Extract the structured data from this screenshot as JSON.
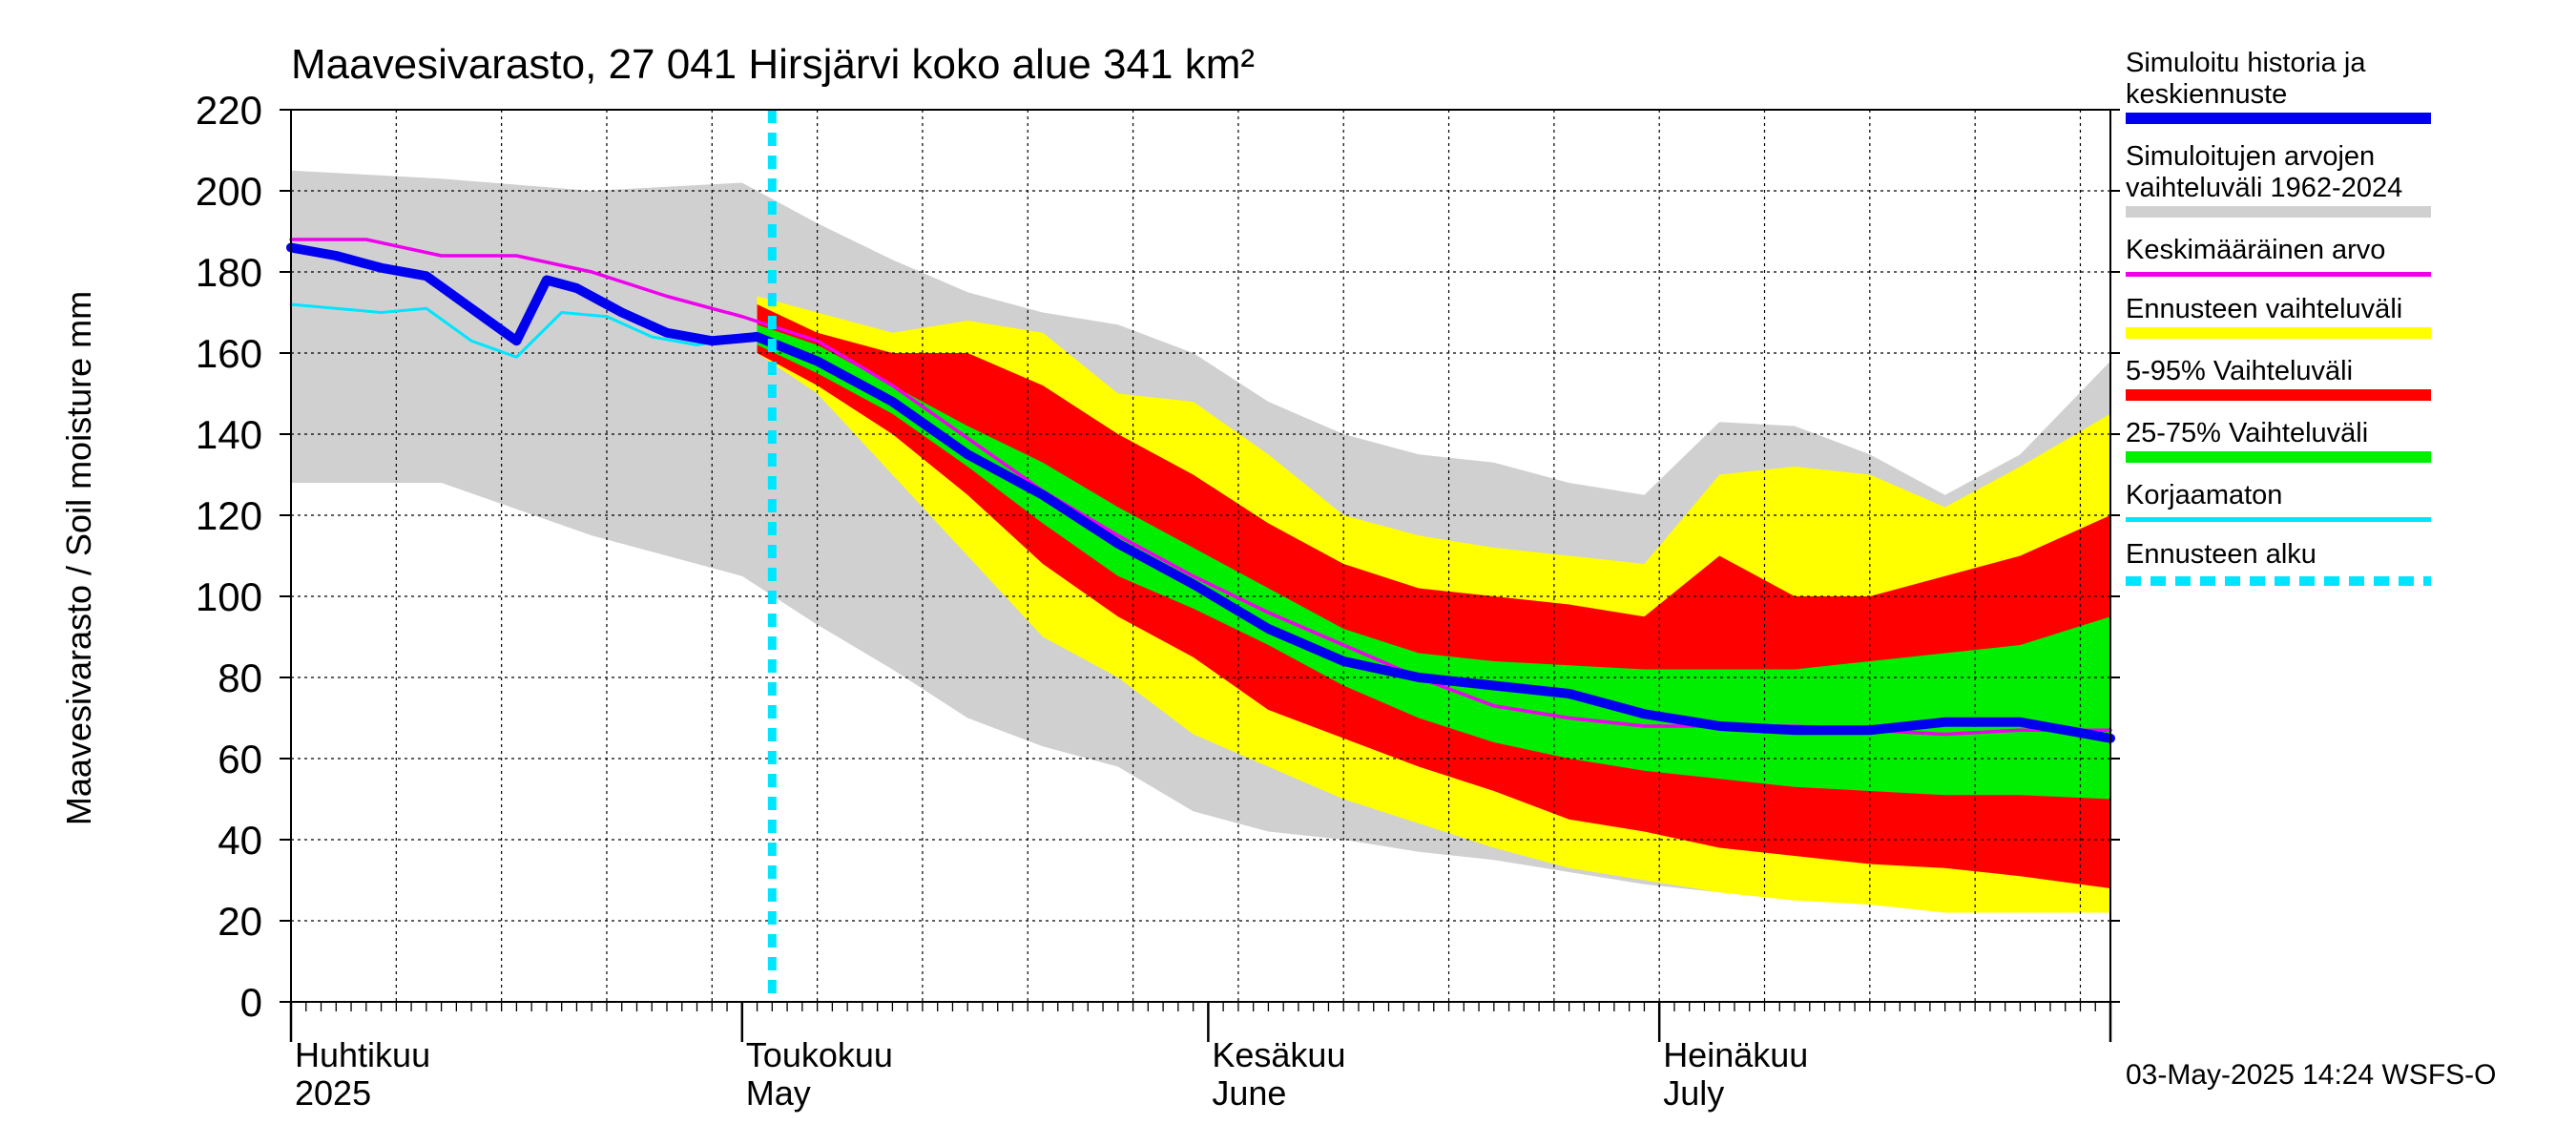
{
  "chart_data": {
    "type": "area",
    "title": "Maavesivarasto, 27 041 Hirsjärvi koko alue 341 km²",
    "ylabel": "Maavesivarasto / Soil moisture   mm",
    "xlabel": "",
    "ylim": [
      0,
      220
    ],
    "yticks": [
      0,
      20,
      40,
      60,
      80,
      100,
      120,
      140,
      160,
      180,
      200,
      220
    ],
    "xlim": [
      "2025-04-01",
      "2025-07-31"
    ],
    "forecast_start": "2025-05-03",
    "month_labels": [
      {
        "line1": "Huhtikuu",
        "line2": "2025",
        "date": "2025-04-01"
      },
      {
        "line1": "Toukokuu",
        "line2": "May",
        "date": "2025-05-01"
      },
      {
        "line1": "Kesäkuu",
        "line2": "June",
        "date": "2025-06-01"
      },
      {
        "line1": "Heinäkuu",
        "line2": "July",
        "date": "2025-07-01"
      }
    ],
    "bands": [
      {
        "name": "Simuloitujen arvojen vaihteluväli 1962-2024",
        "color": "#d0d0d0",
        "x": [
          "2025-04-01",
          "2025-04-11",
          "2025-04-21",
          "2025-05-01",
          "2025-05-06",
          "2025-05-11",
          "2025-05-16",
          "2025-05-21",
          "2025-05-26",
          "2025-05-31",
          "2025-06-05",
          "2025-06-10",
          "2025-06-15",
          "2025-06-20",
          "2025-06-25",
          "2025-06-30",
          "2025-07-05",
          "2025-07-10",
          "2025-07-15",
          "2025-07-20",
          "2025-07-25",
          "2025-07-31"
        ],
        "upper": [
          205,
          203,
          200,
          202,
          192,
          183,
          175,
          170,
          167,
          160,
          148,
          140,
          135,
          133,
          128,
          125,
          143,
          142,
          135,
          125,
          135,
          158
        ],
        "lower": [
          128,
          128,
          115,
          105,
          93,
          82,
          70,
          63,
          58,
          47,
          42,
          40,
          37,
          35,
          32,
          29,
          27,
          27,
          26,
          25,
          25,
          22
        ]
      },
      {
        "name": "Ennusteen vaihteluväli",
        "color": "#ffff00",
        "x": [
          "2025-05-02",
          "2025-05-06",
          "2025-05-11",
          "2025-05-16",
          "2025-05-21",
          "2025-05-26",
          "2025-05-31",
          "2025-06-05",
          "2025-06-10",
          "2025-06-15",
          "2025-06-20",
          "2025-06-25",
          "2025-06-30",
          "2025-07-05",
          "2025-07-10",
          "2025-07-15",
          "2025-07-20",
          "2025-07-25",
          "2025-07-31"
        ],
        "upper": [
          174,
          170,
          165,
          168,
          165,
          150,
          148,
          135,
          120,
          115,
          112,
          110,
          108,
          130,
          132,
          130,
          122,
          132,
          145
        ],
        "lower": [
          160,
          150,
          130,
          110,
          90,
          80,
          66,
          58,
          50,
          44,
          38,
          33,
          30,
          27,
          25,
          24,
          22,
          22,
          22
        ]
      },
      {
        "name": "5-95% Vaihteluväli",
        "color": "#ff0000",
        "x": [
          "2025-05-02",
          "2025-05-06",
          "2025-05-11",
          "2025-05-16",
          "2025-05-21",
          "2025-05-26",
          "2025-05-31",
          "2025-06-05",
          "2025-06-10",
          "2025-06-15",
          "2025-06-20",
          "2025-06-25",
          "2025-06-30",
          "2025-07-05",
          "2025-07-10",
          "2025-07-15",
          "2025-07-20",
          "2025-07-25",
          "2025-07-31"
        ],
        "upper": [
          172,
          165,
          160,
          160,
          152,
          140,
          130,
          118,
          108,
          102,
          100,
          98,
          95,
          110,
          100,
          100,
          105,
          110,
          120
        ],
        "lower": [
          160,
          152,
          140,
          125,
          108,
          95,
          85,
          72,
          65,
          58,
          52,
          45,
          42,
          38,
          36,
          34,
          33,
          31,
          28
        ]
      },
      {
        "name": "25-75% Vaihteluväli",
        "color": "#00ee00",
        "x": [
          "2025-05-02",
          "2025-05-06",
          "2025-05-11",
          "2025-05-16",
          "2025-05-21",
          "2025-05-26",
          "2025-05-31",
          "2025-06-05",
          "2025-06-10",
          "2025-06-15",
          "2025-06-20",
          "2025-06-25",
          "2025-06-30",
          "2025-07-05",
          "2025-07-10",
          "2025-07-15",
          "2025-07-20",
          "2025-07-25",
          "2025-07-31"
        ],
        "upper": [
          167,
          162,
          152,
          142,
          133,
          122,
          112,
          102,
          92,
          86,
          84,
          83,
          82,
          82,
          82,
          84,
          86,
          88,
          95
        ],
        "lower": [
          162,
          155,
          145,
          132,
          118,
          105,
          97,
          88,
          78,
          70,
          64,
          60,
          57,
          55,
          53,
          52,
          51,
          51,
          50
        ]
      }
    ],
    "series": [
      {
        "name": "Korjaamaton",
        "color": "#00e5ff",
        "width": 3,
        "x": [
          "2025-04-01",
          "2025-04-04",
          "2025-04-07",
          "2025-04-10",
          "2025-04-13",
          "2025-04-16",
          "2025-04-19",
          "2025-04-22",
          "2025-04-25",
          "2025-04-28",
          "2025-05-01",
          "2025-05-02"
        ],
        "y": [
          172,
          171,
          170,
          171,
          163,
          159,
          170,
          169,
          164,
          162,
          164,
          165
        ]
      },
      {
        "name": "Keskimääräinen arvo",
        "color": "#ee00ee",
        "width": 3.5,
        "x": [
          "2025-04-01",
          "2025-04-06",
          "2025-04-11",
          "2025-04-16",
          "2025-04-21",
          "2025-04-26",
          "2025-05-01",
          "2025-05-06",
          "2025-05-11",
          "2025-05-16",
          "2025-05-21",
          "2025-05-26",
          "2025-05-31",
          "2025-06-05",
          "2025-06-10",
          "2025-06-15",
          "2025-06-20",
          "2025-06-25",
          "2025-06-30",
          "2025-07-05",
          "2025-07-10",
          "2025-07-15",
          "2025-07-20",
          "2025-07-25",
          "2025-07-31"
        ],
        "y": [
          188,
          188,
          184,
          184,
          180,
          174,
          169,
          163,
          152,
          139,
          126,
          115,
          105,
          96,
          88,
          80,
          73,
          70,
          68,
          68,
          68,
          67,
          66,
          67,
          67
        ]
      },
      {
        "name": "Simuloitu historia ja keskiennuste",
        "color": "#0000ee",
        "width": 10,
        "x": [
          "2025-04-01",
          "2025-04-04",
          "2025-04-07",
          "2025-04-10",
          "2025-04-13",
          "2025-04-16",
          "2025-04-18",
          "2025-04-20",
          "2025-04-23",
          "2025-04-26",
          "2025-04-29",
          "2025-05-02",
          "2025-05-06",
          "2025-05-11",
          "2025-05-16",
          "2025-05-21",
          "2025-05-26",
          "2025-05-31",
          "2025-06-05",
          "2025-06-10",
          "2025-06-15",
          "2025-06-20",
          "2025-06-25",
          "2025-06-30",
          "2025-07-05",
          "2025-07-10",
          "2025-07-15",
          "2025-07-20",
          "2025-07-25",
          "2025-07-31"
        ],
        "y": [
          186,
          184,
          181,
          179,
          171,
          163,
          178,
          176,
          170,
          165,
          163,
          164,
          158,
          148,
          135,
          125,
          113,
          103,
          92,
          84,
          80,
          78,
          76,
          71,
          68,
          67,
          67,
          69,
          69,
          65
        ]
      }
    ],
    "legend_placement": "right",
    "grid": true
  },
  "legend": {
    "items": [
      {
        "label": "Simuloitu historia ja\nkeskiennuste",
        "color": "#0000ee",
        "style": "thick"
      },
      {
        "label": "Simuloitujen arvojen\nvaihteluväli 1962-2024",
        "color": "#d0d0d0",
        "style": "thick"
      },
      {
        "label": "Keskimääräinen arvo",
        "color": "#ee00ee",
        "style": "thin"
      },
      {
        "label": "Ennusteen vaihteluväli",
        "color": "#ffff00",
        "style": "thick"
      },
      {
        "label": "5-95% Vaihteluväli",
        "color": "#ff0000",
        "style": "thick"
      },
      {
        "label": "25-75% Vaihteluväli",
        "color": "#00ee00",
        "style": "thick"
      },
      {
        "label": "Korjaamaton",
        "color": "#00e5ff",
        "style": "thin"
      },
      {
        "label": "Ennusteen alku",
        "color": "#00e5ff",
        "style": "dashed"
      }
    ]
  },
  "footer": {
    "timestamp": "03-May-2025 14:24 WSFS-O"
  }
}
